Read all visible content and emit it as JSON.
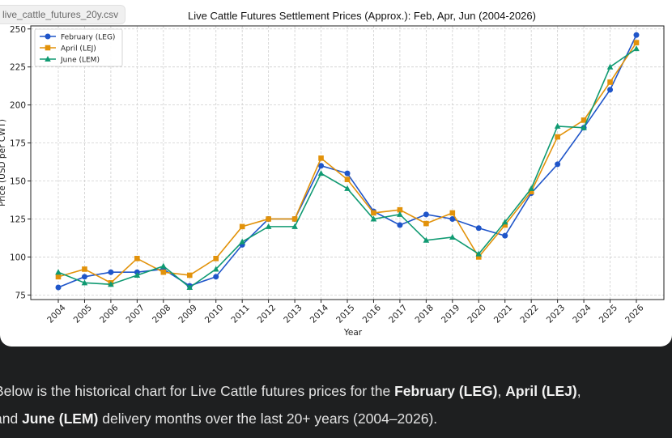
{
  "file_chip": {
    "label": "live_cattle_futures_20y.csv"
  },
  "message": {
    "line1": [
      {
        "text": "Below is the historical chart for Live Cattle futures prices for the ",
        "bold": false
      },
      {
        "text": "February (LEG)",
        "bold": true
      },
      {
        "text": ", ",
        "bold": false
      },
      {
        "text": "April (LEJ)",
        "bold": true
      },
      {
        "text": ",",
        "bold": false
      }
    ],
    "line2": [
      {
        "text": "and ",
        "bold": false
      },
      {
        "text": "June (LEM)",
        "bold": true
      },
      {
        "text": " delivery months over the last 20+ years (2004–2026).",
        "bold": false
      }
    ]
  },
  "chart_data": {
    "type": "line",
    "title": "Live Cattle Futures Settlement Prices (Approx.): Feb, Apr, Jun (2004-2026)",
    "xlabel": "Year",
    "ylabel": "Price (USD per CWT)",
    "x": [
      2004,
      2005,
      2006,
      2007,
      2008,
      2009,
      2010,
      2011,
      2012,
      2013,
      2014,
      2015,
      2016,
      2017,
      2018,
      2019,
      2020,
      2021,
      2022,
      2023,
      2024,
      2025,
      2026
    ],
    "ylim": [
      72,
      252
    ],
    "yticks": [
      75,
      100,
      125,
      150,
      175,
      200,
      225,
      250
    ],
    "grid": true,
    "legend_position": "top-left",
    "series": [
      {
        "name": "February (LEG)",
        "color": "#1f55c9",
        "marker": "circle",
        "values": [
          80,
          87,
          90,
          90,
          92,
          81,
          87,
          108,
          125,
          125,
          160,
          155,
          130,
          121,
          128,
          125,
          119,
          114,
          142,
          161,
          185,
          210,
          246
        ]
      },
      {
        "name": "April (LEJ)",
        "color": "#e2920a",
        "marker": "square",
        "values": [
          87,
          92,
          83,
          99,
          90,
          88,
          99,
          120,
          125,
          125,
          165,
          151,
          129,
          131,
          122,
          129,
          100,
          121,
          143,
          179,
          190,
          215,
          241
        ]
      },
      {
        "name": "June (LEM)",
        "color": "#109a72",
        "marker": "triangle",
        "values": [
          90,
          83,
          82,
          88,
          94,
          80,
          92,
          110,
          120,
          120,
          155,
          145,
          125,
          128,
          111,
          113,
          102,
          123,
          145,
          186,
          185,
          225,
          237
        ]
      }
    ]
  }
}
